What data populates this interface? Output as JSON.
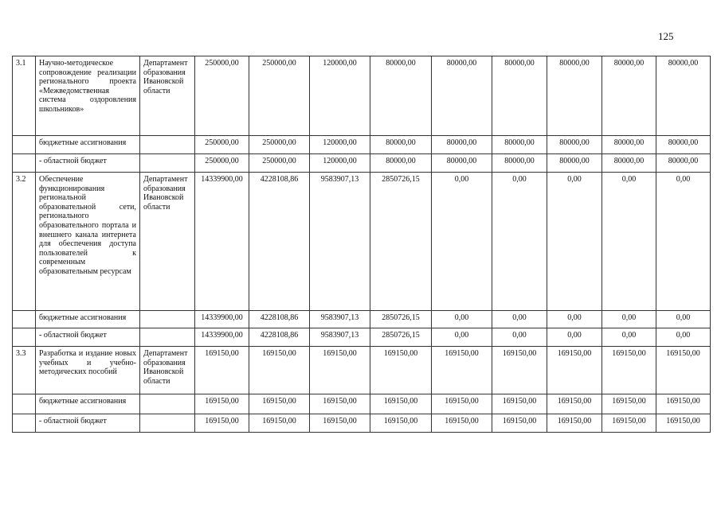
{
  "page_number": "125",
  "rows": [
    {
      "no": "3.1",
      "name": "Научно-методическое сопровождение реализации регионального проекта «Межведомственная система оздоровления школьников»",
      "executor": "Департамент образования Ивановской области",
      "values": [
        "250000,00",
        "250000,00",
        "120000,00",
        "80000,00",
        "80000,00",
        "80000,00",
        "80000,00",
        "80000,00",
        "80000,00"
      ]
    },
    {
      "no": "",
      "name": "бюджетные ассигнования",
      "executor": "",
      "values": [
        "250000,00",
        "250000,00",
        "120000,00",
        "80000,00",
        "80000,00",
        "80000,00",
        "80000,00",
        "80000,00",
        "80000,00"
      ]
    },
    {
      "no": "",
      "name": "- областной бюджет",
      "executor": "",
      "values": [
        "250000,00",
        "250000,00",
        "120000,00",
        "80000,00",
        "80000,00",
        "80000,00",
        "80000,00",
        "80000,00",
        "80000,00"
      ]
    },
    {
      "no": "3.2",
      "name": "Обеспечение функционирования региональной образовательной сети, регионального образовательного портала и внешнего канала интернета для обеспечения доступа пользователей к современным образовательным ресурсам",
      "executor": "Департамент образования Ивановской области",
      "values": [
        "14339900,00",
        "4228108,86",
        "9583907,13",
        "2850726,15",
        "0,00",
        "0,00",
        "0,00",
        "0,00",
        "0,00"
      ]
    },
    {
      "no": "",
      "name": "бюджетные ассигнования",
      "executor": "",
      "values": [
        "14339900,00",
        "4228108,86",
        "9583907,13",
        "2850726,15",
        "0,00",
        "0,00",
        "0,00",
        "0,00",
        "0,00"
      ]
    },
    {
      "no": "",
      "name": "- областной бюджет",
      "executor": "",
      "values": [
        "14339900,00",
        "4228108,86",
        "9583907,13",
        "2850726,15",
        "0,00",
        "0,00",
        "0,00",
        "0,00",
        "0,00"
      ]
    },
    {
      "no": "3.3",
      "name": "Разработка и издание новых учебных и учебно-методических пособий",
      "executor": "Департамент образования Ивановской области",
      "values": [
        "169150,00",
        "169150,00",
        "169150,00",
        "169150,00",
        "169150,00",
        "169150,00",
        "169150,00",
        "169150,00",
        "169150,00"
      ]
    },
    {
      "no": "",
      "name": "бюджетные ассигнования",
      "executor": "",
      "values": [
        "169150,00",
        "169150,00",
        "169150,00",
        "169150,00",
        "169150,00",
        "169150,00",
        "169150,00",
        "169150,00",
        "169150,00"
      ]
    },
    {
      "no": "",
      "name": "- областной бюджет",
      "executor": "",
      "values": [
        "169150,00",
        "169150,00",
        "169150,00",
        "169150,00",
        "169150,00",
        "169150,00",
        "169150,00",
        "169150,00",
        "169150,00"
      ]
    }
  ]
}
